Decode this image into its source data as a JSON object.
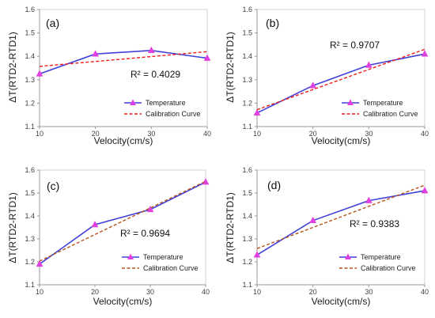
{
  "chart_data": [
    {
      "type": "line",
      "panel_label": "(a)",
      "xlabel": "Velocity(cm/s)",
      "ylabel": "ΔT(RTD2-RTD1)",
      "x": [
        10,
        20,
        30,
        40
      ],
      "xlim": [
        10,
        40
      ],
      "ylim": [
        1.1,
        1.6
      ],
      "xticks": [
        "10",
        "20",
        "30",
        "40"
      ],
      "yticks": [
        "1.1",
        "1.2",
        "1.3",
        "1.4",
        "1.5",
        "1.6"
      ],
      "r2_text": "R² = 0.4029",
      "series": [
        {
          "name": "Temperature",
          "values": [
            1.325,
            1.41,
            1.425,
            1.392
          ],
          "color": "#4040d8",
          "marker_color": "#e040e0"
        },
        {
          "name": "Calibration Curve",
          "values": [
            1.357,
            1.378,
            1.399,
            1.42
          ],
          "color": "#ee1c1c",
          "dashed": true
        }
      ]
    },
    {
      "type": "line",
      "panel_label": "(b)",
      "xlabel": "Velocity(cm/s)",
      "ylabel": "ΔT(RTD2-RTD1)",
      "x": [
        10,
        20,
        30,
        40
      ],
      "xlim": [
        10,
        40
      ],
      "ylim": [
        1.1,
        1.6
      ],
      "xticks": [
        "10",
        "20",
        "30",
        "40"
      ],
      "yticks": [
        "1.1",
        "1.2",
        "1.3",
        "1.4",
        "1.5",
        "1.6"
      ],
      "r2_text": "R² = 0.9707",
      "series": [
        {
          "name": "Temperature",
          "values": [
            1.158,
            1.275,
            1.362,
            1.41
          ],
          "color": "#4040d8",
          "marker_color": "#e040e0"
        },
        {
          "name": "Calibration Curve",
          "values": [
            1.172,
            1.258,
            1.344,
            1.43
          ],
          "color": "#ee1c1c",
          "dashed": true
        }
      ]
    },
    {
      "type": "line",
      "panel_label": "(c)",
      "xlabel": "Velocity(cm/s)",
      "ylabel": "ΔT(RTD2-RTD1)",
      "x": [
        10,
        20,
        30,
        40
      ],
      "xlim": [
        10,
        40
      ],
      "ylim": [
        1.1,
        1.6
      ],
      "xticks": [
        "10",
        "20",
        "30",
        "40"
      ],
      "yticks": [
        "1.1",
        "1.2",
        "1.3",
        "1.4",
        "1.5",
        "1.6"
      ],
      "r2_text": "R² = 0.9694",
      "series": [
        {
          "name": "Temperature",
          "values": [
            1.19,
            1.362,
            1.428,
            1.548
          ],
          "color": "#4040d8",
          "marker_color": "#e040e0"
        },
        {
          "name": "Calibration Curve",
          "values": [
            1.203,
            1.319,
            1.435,
            1.551
          ],
          "color": "#b5521b",
          "dashed": true
        }
      ]
    },
    {
      "type": "line",
      "panel_label": "(d)",
      "xlabel": "Velocity(cm/s)",
      "ylabel": "ΔT(RTD2-RTD1)",
      "x": [
        10,
        20,
        30,
        40
      ],
      "xlim": [
        10,
        40
      ],
      "ylim": [
        1.1,
        1.6
      ],
      "xticks": [
        "10",
        "20",
        "30",
        "40"
      ],
      "yticks": [
        "1.1",
        "1.2",
        "1.3",
        "1.4",
        "1.5",
        "1.6"
      ],
      "r2_text": "R² = 0.9383",
      "series": [
        {
          "name": "Temperature",
          "values": [
            1.23,
            1.38,
            1.467,
            1.51
          ],
          "color": "#4040d8",
          "marker_color": "#e040e0"
        },
        {
          "name": "Calibration Curve",
          "values": [
            1.258,
            1.35,
            1.442,
            1.534
          ],
          "color": "#b5521b",
          "dashed": true
        }
      ]
    }
  ]
}
